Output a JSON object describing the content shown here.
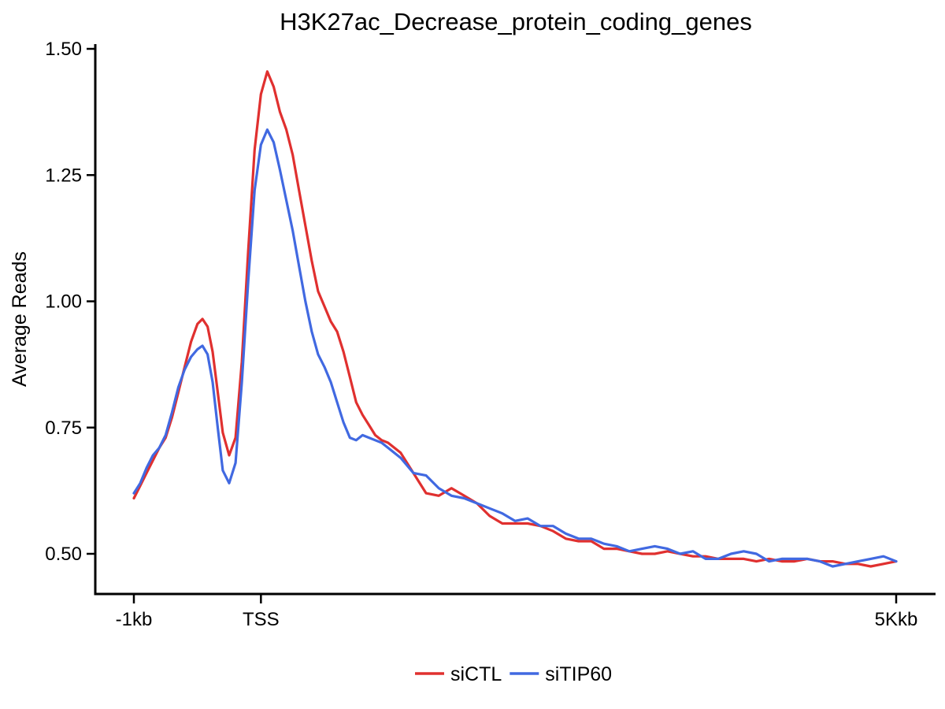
{
  "chart_data": {
    "type": "line",
    "title": "H3K27ac_Decrease_protein_coding_genes",
    "xlabel": "",
    "ylabel": "Average Reads",
    "xlim": [
      -1,
      5
    ],
    "ylim": [
      0.42,
      1.52
    ],
    "x_ticks": [
      {
        "value": -1,
        "label": "-1kb"
      },
      {
        "value": 0,
        "label": "TSS"
      },
      {
        "value": 5,
        "label": "5Kkb"
      }
    ],
    "y_ticks": [
      {
        "value": 0.5,
        "label": "0.50"
      },
      {
        "value": 0.75,
        "label": "0.75"
      },
      {
        "value": 1.0,
        "label": "1.00"
      },
      {
        "value": 1.25,
        "label": "1.25"
      },
      {
        "value": 1.5,
        "label": "1.50"
      }
    ],
    "grid": false,
    "legend_position": "bottom",
    "series": [
      {
        "name": "siCTL",
        "color": "#e0302f",
        "points": [
          [
            -1.0,
            0.61
          ],
          [
            -0.95,
            0.635
          ],
          [
            -0.9,
            0.66
          ],
          [
            -0.85,
            0.685
          ],
          [
            -0.8,
            0.71
          ],
          [
            -0.75,
            0.73
          ],
          [
            -0.7,
            0.77
          ],
          [
            -0.65,
            0.82
          ],
          [
            -0.6,
            0.87
          ],
          [
            -0.55,
            0.92
          ],
          [
            -0.5,
            0.955
          ],
          [
            -0.46,
            0.965
          ],
          [
            -0.42,
            0.95
          ],
          [
            -0.38,
            0.9
          ],
          [
            -0.34,
            0.82
          ],
          [
            -0.3,
            0.74
          ],
          [
            -0.25,
            0.695
          ],
          [
            -0.2,
            0.73
          ],
          [
            -0.15,
            0.88
          ],
          [
            -0.1,
            1.1
          ],
          [
            -0.05,
            1.3
          ],
          [
            0.0,
            1.41
          ],
          [
            0.05,
            1.455
          ],
          [
            0.1,
            1.425
          ],
          [
            0.15,
            1.375
          ],
          [
            0.2,
            1.34
          ],
          [
            0.25,
            1.29
          ],
          [
            0.3,
            1.22
          ],
          [
            0.35,
            1.15
          ],
          [
            0.4,
            1.08
          ],
          [
            0.45,
            1.02
          ],
          [
            0.5,
            0.99
          ],
          [
            0.55,
            0.96
          ],
          [
            0.6,
            0.94
          ],
          [
            0.65,
            0.9
          ],
          [
            0.7,
            0.85
          ],
          [
            0.75,
            0.8
          ],
          [
            0.8,
            0.775
          ],
          [
            0.85,
            0.755
          ],
          [
            0.9,
            0.735
          ],
          [
            0.95,
            0.725
          ],
          [
            1.0,
            0.72
          ],
          [
            1.1,
            0.7
          ],
          [
            1.2,
            0.66
          ],
          [
            1.3,
            0.62
          ],
          [
            1.4,
            0.615
          ],
          [
            1.5,
            0.63
          ],
          [
            1.6,
            0.615
          ],
          [
            1.7,
            0.6
          ],
          [
            1.8,
            0.575
          ],
          [
            1.9,
            0.56
          ],
          [
            2.0,
            0.56
          ],
          [
            2.1,
            0.56
          ],
          [
            2.2,
            0.555
          ],
          [
            2.3,
            0.545
          ],
          [
            2.4,
            0.53
          ],
          [
            2.5,
            0.525
          ],
          [
            2.6,
            0.525
          ],
          [
            2.7,
            0.51
          ],
          [
            2.8,
            0.51
          ],
          [
            2.9,
            0.505
          ],
          [
            3.0,
            0.5
          ],
          [
            3.1,
            0.5
          ],
          [
            3.2,
            0.505
          ],
          [
            3.3,
            0.5
          ],
          [
            3.4,
            0.495
          ],
          [
            3.5,
            0.495
          ],
          [
            3.6,
            0.49
          ],
          [
            3.7,
            0.49
          ],
          [
            3.8,
            0.49
          ],
          [
            3.9,
            0.485
          ],
          [
            4.0,
            0.49
          ],
          [
            4.1,
            0.485
          ],
          [
            4.2,
            0.485
          ],
          [
            4.3,
            0.49
          ],
          [
            4.4,
            0.485
          ],
          [
            4.5,
            0.485
          ],
          [
            4.6,
            0.48
          ],
          [
            4.7,
            0.48
          ],
          [
            4.8,
            0.475
          ],
          [
            4.9,
            0.48
          ],
          [
            5.0,
            0.485
          ]
        ]
      },
      {
        "name": "siTIP60",
        "color": "#4169e1",
        "points": [
          [
            -1.0,
            0.62
          ],
          [
            -0.95,
            0.64
          ],
          [
            -0.9,
            0.67
          ],
          [
            -0.85,
            0.695
          ],
          [
            -0.8,
            0.71
          ],
          [
            -0.75,
            0.735
          ],
          [
            -0.7,
            0.78
          ],
          [
            -0.65,
            0.83
          ],
          [
            -0.6,
            0.865
          ],
          [
            -0.55,
            0.89
          ],
          [
            -0.5,
            0.905
          ],
          [
            -0.46,
            0.912
          ],
          [
            -0.42,
            0.895
          ],
          [
            -0.38,
            0.84
          ],
          [
            -0.34,
            0.75
          ],
          [
            -0.3,
            0.665
          ],
          [
            -0.25,
            0.64
          ],
          [
            -0.2,
            0.68
          ],
          [
            -0.15,
            0.84
          ],
          [
            -0.1,
            1.04
          ],
          [
            -0.05,
            1.22
          ],
          [
            0.0,
            1.31
          ],
          [
            0.05,
            1.34
          ],
          [
            0.1,
            1.315
          ],
          [
            0.15,
            1.26
          ],
          [
            0.2,
            1.2
          ],
          [
            0.25,
            1.14
          ],
          [
            0.3,
            1.07
          ],
          [
            0.35,
            1.0
          ],
          [
            0.4,
            0.94
          ],
          [
            0.45,
            0.895
          ],
          [
            0.5,
            0.87
          ],
          [
            0.55,
            0.84
          ],
          [
            0.6,
            0.8
          ],
          [
            0.65,
            0.76
          ],
          [
            0.7,
            0.73
          ],
          [
            0.75,
            0.725
          ],
          [
            0.8,
            0.735
          ],
          [
            0.85,
            0.73
          ],
          [
            0.9,
            0.725
          ],
          [
            0.95,
            0.72
          ],
          [
            1.0,
            0.71
          ],
          [
            1.1,
            0.69
          ],
          [
            1.2,
            0.66
          ],
          [
            1.3,
            0.655
          ],
          [
            1.4,
            0.63
          ],
          [
            1.5,
            0.615
          ],
          [
            1.6,
            0.61
          ],
          [
            1.7,
            0.6
          ],
          [
            1.8,
            0.59
          ],
          [
            1.9,
            0.58
          ],
          [
            2.0,
            0.565
          ],
          [
            2.1,
            0.57
          ],
          [
            2.2,
            0.555
          ],
          [
            2.3,
            0.555
          ],
          [
            2.4,
            0.54
          ],
          [
            2.5,
            0.53
          ],
          [
            2.6,
            0.53
          ],
          [
            2.7,
            0.52
          ],
          [
            2.8,
            0.515
          ],
          [
            2.9,
            0.505
          ],
          [
            3.0,
            0.51
          ],
          [
            3.1,
            0.515
          ],
          [
            3.2,
            0.51
          ],
          [
            3.3,
            0.5
          ],
          [
            3.4,
            0.505
          ],
          [
            3.5,
            0.49
          ],
          [
            3.6,
            0.49
          ],
          [
            3.7,
            0.5
          ],
          [
            3.8,
            0.505
          ],
          [
            3.9,
            0.5
          ],
          [
            4.0,
            0.485
          ],
          [
            4.1,
            0.49
          ],
          [
            4.2,
            0.49
          ],
          [
            4.3,
            0.49
          ],
          [
            4.4,
            0.485
          ],
          [
            4.5,
            0.475
          ],
          [
            4.6,
            0.48
          ],
          [
            4.7,
            0.485
          ],
          [
            4.8,
            0.49
          ],
          [
            4.9,
            0.495
          ],
          [
            5.0,
            0.485
          ]
        ]
      }
    ]
  }
}
